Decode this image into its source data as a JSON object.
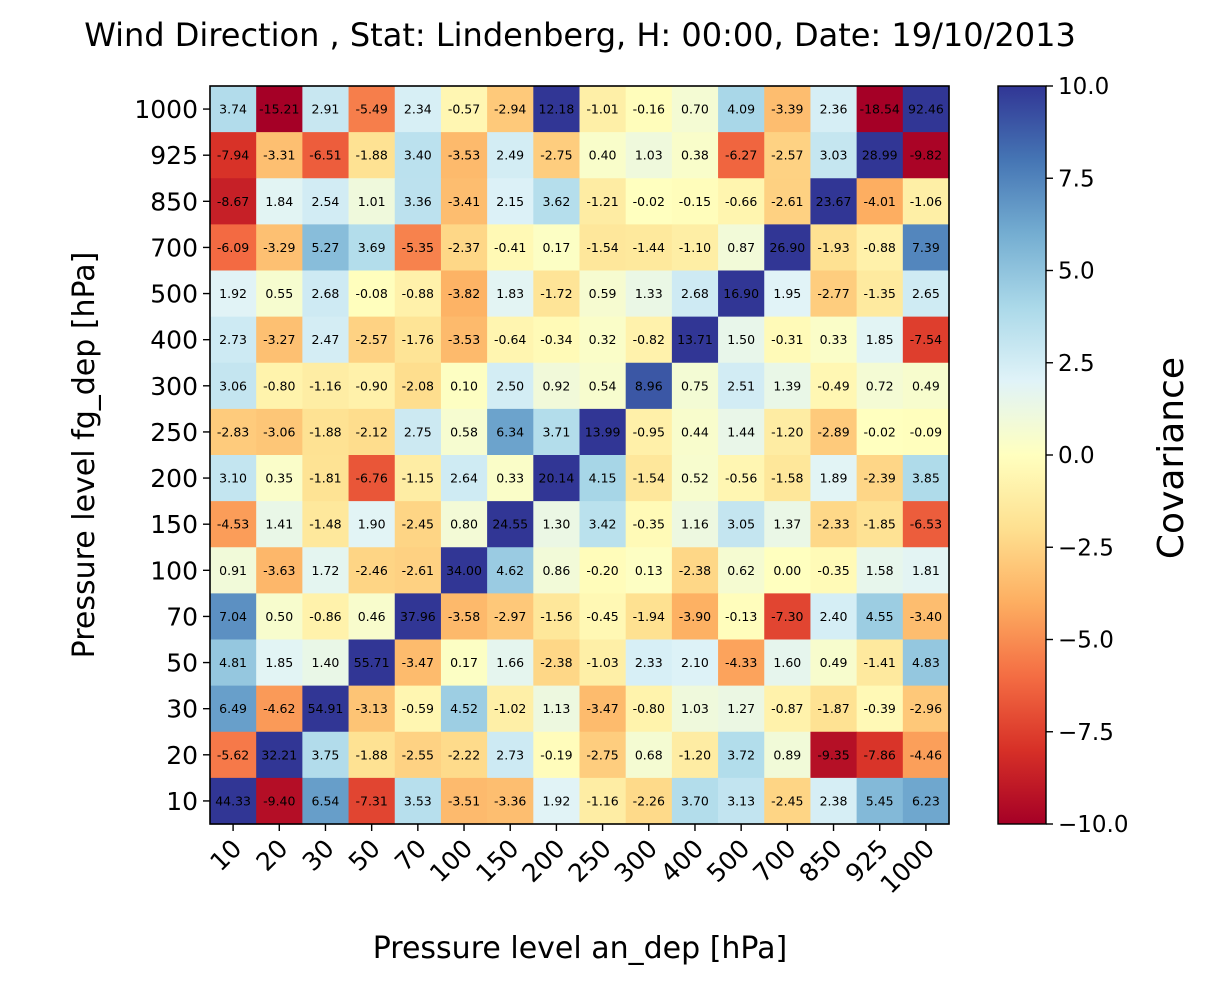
{
  "chart_data": {
    "type": "heatmap",
    "title": "Wind Direction , Stat: Lindenberg, H: 00:00, Date: 19/10/2013",
    "xlabel": "Pressure level an_dep [hPa]",
    "ylabel": "Pressure level fg_dep [hPa]",
    "colorbar_label": "Covariance",
    "colormap": "RdYlBu",
    "clim": [
      -10.0,
      10.0
    ],
    "colorbar_ticks": [
      "10.0",
      "7.5",
      "5.0",
      "2.5",
      "0.0",
      "−2.5",
      "−5.0",
      "−7.5",
      "−10.0"
    ],
    "x_categories": [
      "10",
      "20",
      "30",
      "50",
      "70",
      "100",
      "150",
      "200",
      "250",
      "300",
      "400",
      "500",
      "700",
      "850",
      "925",
      "1000"
    ],
    "y_categories": [
      "1000",
      "925",
      "850",
      "700",
      "500",
      "400",
      "300",
      "250",
      "200",
      "150",
      "100",
      "70",
      "50",
      "30",
      "20",
      "10"
    ],
    "values": [
      [
        3.74,
        -15.21,
        2.91,
        -5.49,
        2.34,
        -0.57,
        -2.94,
        12.18,
        -1.01,
        -0.16,
        0.7,
        4.09,
        -3.39,
        2.36,
        -18.54,
        92.46
      ],
      [
        -7.94,
        -3.31,
        -6.51,
        -1.88,
        3.4,
        -3.53,
        2.49,
        -2.75,
        0.4,
        1.03,
        0.38,
        -6.27,
        -2.57,
        3.03,
        28.99,
        -9.82
      ],
      [
        -8.67,
        1.84,
        2.54,
        1.01,
        3.36,
        -3.41,
        2.15,
        3.62,
        -1.21,
        -0.02,
        -0.15,
        -0.66,
        -2.61,
        23.67,
        -4.01,
        -1.06
      ],
      [
        -6.09,
        -3.29,
        5.27,
        3.69,
        -5.35,
        -2.37,
        -0.41,
        0.17,
        -1.54,
        -1.44,
        -1.1,
        0.87,
        26.9,
        -1.93,
        -0.88,
        7.39
      ],
      [
        1.92,
        0.55,
        2.68,
        -0.08,
        -0.88,
        -3.82,
        1.83,
        -1.72,
        0.59,
        1.33,
        2.68,
        16.9,
        1.95,
        -2.77,
        -1.35,
        2.65
      ],
      [
        2.73,
        -3.27,
        2.47,
        -2.57,
        -1.76,
        -3.53,
        -0.64,
        -0.34,
        0.32,
        -0.82,
        13.71,
        1.5,
        -0.31,
        0.33,
        1.85,
        -7.54
      ],
      [
        3.06,
        -0.8,
        -1.16,
        -0.9,
        -2.08,
        0.1,
        2.5,
        0.92,
        0.54,
        8.96,
        0.75,
        2.51,
        1.39,
        -0.49,
        0.72,
        0.49
      ],
      [
        -2.83,
        -3.06,
        -1.88,
        -2.12,
        2.75,
        0.58,
        6.34,
        3.71,
        13.99,
        -0.95,
        0.44,
        1.44,
        -1.2,
        -2.89,
        -0.02,
        -0.09
      ],
      [
        3.1,
        0.35,
        -1.81,
        -6.76,
        -1.15,
        2.64,
        0.33,
        20.14,
        4.15,
        -1.54,
        0.52,
        -0.56,
        -1.58,
        1.89,
        -2.39,
        3.85
      ],
      [
        -4.53,
        1.41,
        -1.48,
        1.9,
        -2.45,
        0.8,
        24.55,
        1.3,
        3.42,
        -0.35,
        1.16,
        3.05,
        1.37,
        -2.33,
        -1.85,
        -6.53
      ],
      [
        0.91,
        -3.63,
        1.72,
        -2.46,
        -2.61,
        34.0,
        4.62,
        0.86,
        -0.2,
        0.13,
        -2.38,
        0.62,
        0.0,
        -0.35,
        1.58,
        1.81
      ],
      [
        7.04,
        0.5,
        -0.86,
        0.46,
        37.96,
        -3.58,
        -2.97,
        -1.56,
        -0.45,
        -1.94,
        -3.9,
        -0.13,
        -7.3,
        2.4,
        4.55,
        -3.4
      ],
      [
        4.81,
        1.85,
        1.4,
        55.71,
        -3.47,
        0.17,
        1.66,
        -2.38,
        -1.03,
        2.33,
        2.1,
        -4.33,
        1.6,
        0.49,
        -1.41,
        4.83
      ],
      [
        6.49,
        -4.62,
        54.91,
        -3.13,
        -0.59,
        4.52,
        -1.02,
        1.13,
        -3.47,
        -0.8,
        1.03,
        1.27,
        -0.87,
        -1.87,
        -0.39,
        -2.96
      ],
      [
        -5.62,
        32.21,
        3.75,
        -1.88,
        -2.55,
        -2.22,
        2.73,
        -0.19,
        -2.75,
        0.68,
        -1.2,
        3.72,
        0.89,
        -9.35,
        -7.86,
        -4.46
      ],
      [
        44.33,
        -9.4,
        6.54,
        -7.31,
        3.53,
        -3.51,
        -3.36,
        1.92,
        -1.16,
        -2.26,
        3.7,
        3.13,
        -2.45,
        2.38,
        5.45,
        6.23
      ]
    ]
  }
}
